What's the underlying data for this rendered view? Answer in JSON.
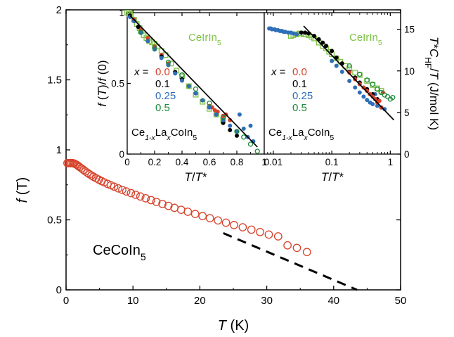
{
  "chart_data": [
    {
      "panel": "main",
      "type": "scatter",
      "xlabel": [
        "T",
        " (K)"
      ],
      "ylabel": [
        "f",
        " (T)"
      ],
      "xlim": [
        0,
        50
      ],
      "ylim": [
        0,
        2
      ],
      "xticks": [
        "0",
        "10",
        "20",
        "30",
        "40",
        "50"
      ],
      "yticks": [
        "0",
        "0.5",
        "1",
        "1.5",
        "2"
      ],
      "annotation": [
        "CeCoIn",
        "5"
      ],
      "series": [
        {
          "marker": "open-circle",
          "color": "#d7412a",
          "x": [
            0.2,
            0.4,
            0.6,
            0.8,
            1.0,
            1.2,
            1.4,
            1.6,
            1.8,
            2.0,
            2.3,
            2.6,
            2.9,
            3.2,
            3.5,
            3.8,
            4.1,
            4.5,
            4.9,
            5.3,
            5.7,
            6.2,
            6.7,
            7.2,
            7.8,
            8.4,
            9.0,
            9.7,
            10.4,
            11.1,
            11.9,
            12.7,
            13.5,
            14.4,
            15.3,
            16.2,
            17.2,
            18.2,
            19.3,
            20.4,
            21.5,
            22.7,
            23.9,
            25.1,
            26.4,
            27.7,
            29.0,
            30.3,
            31.7,
            33.1,
            34.5,
            36.0
          ],
          "y": [
            0.905,
            0.905,
            0.905,
            0.905,
            0.905,
            0.902,
            0.898,
            0.893,
            0.886,
            0.878,
            0.868,
            0.857,
            0.846,
            0.836,
            0.826,
            0.817,
            0.808,
            0.797,
            0.787,
            0.777,
            0.768,
            0.757,
            0.747,
            0.737,
            0.725,
            0.714,
            0.703,
            0.691,
            0.679,
            0.667,
            0.654,
            0.641,
            0.628,
            0.614,
            0.6,
            0.586,
            0.572,
            0.558,
            0.542,
            0.527,
            0.512,
            0.496,
            0.48,
            0.463,
            0.447,
            0.43,
            0.413,
            0.395,
            0.382,
            0.318,
            0.3,
            0.27
          ]
        }
      ],
      "fit_line": {
        "style": "dashed",
        "color": "#000000",
        "x": [
          23.5,
          43.5
        ],
        "y": [
          0.405,
          0.0
        ]
      }
    },
    {
      "panel": "inset-left",
      "type": "scatter",
      "xlabel": [
        "T",
        "/",
        "T",
        "*"
      ],
      "ylabel": [
        "f",
        " (",
        "T",
        ")/",
        "f",
        " (0)"
      ],
      "xlim": [
        0,
        1
      ],
      "ylim": [
        0,
        1
      ],
      "xticks": [
        "0",
        "0.2",
        "0.4",
        "0.6",
        "0.8",
        "1"
      ],
      "yticks": [
        "0",
        "0.5",
        "1"
      ],
      "annotation": [
        "CeIrIn",
        "5"
      ],
      "formula": [
        "Ce",
        "1-x",
        "La",
        "x",
        "CoIn",
        "5"
      ],
      "legend_title": [
        "x",
        " ="
      ],
      "legend": [
        {
          "label": "0.0",
          "color": "#d7412a"
        },
        {
          "label": "0.1",
          "color": "#000000"
        },
        {
          "label": "0.25",
          "color": "#2f6fb8"
        },
        {
          "label": "0.5",
          "color": "#1e8a3c"
        }
      ],
      "series": [
        {
          "label": "0.0",
          "color": "#d7412a",
          "marker": "filled-circle",
          "x": [
            0.05,
            0.1,
            0.15,
            0.2,
            0.25,
            0.3,
            0.35,
            0.4,
            0.45,
            0.5,
            0.55,
            0.6,
            0.62,
            0.64,
            0.66,
            0.7,
            0.72,
            0.75
          ],
          "y": [
            0.95,
            0.88,
            0.82,
            0.76,
            0.7,
            0.64,
            0.58,
            0.52,
            0.48,
            0.43,
            0.38,
            0.34,
            0.33,
            0.31,
            0.3,
            0.27,
            0.28,
            0.24
          ]
        },
        {
          "label": "0.1",
          "color": "#000000",
          "marker": "filled-circle",
          "x": [
            0.02,
            0.05,
            0.08,
            0.1,
            0.15,
            0.2,
            0.25,
            0.3,
            0.35,
            0.4,
            0.45,
            0.5,
            0.55,
            0.6,
            0.65,
            0.7,
            0.75,
            0.8
          ],
          "y": [
            0.98,
            0.94,
            0.9,
            0.86,
            0.8,
            0.74,
            0.69,
            0.63,
            0.58,
            0.53,
            0.48,
            0.43,
            0.38,
            0.33,
            0.28,
            0.22,
            0.17,
            0.13
          ]
        },
        {
          "label": "0.25",
          "color": "#2f6fb8",
          "marker": "filled-circle",
          "x": [
            0.02,
            0.05,
            0.1,
            0.15,
            0.2,
            0.25,
            0.3,
            0.35,
            0.4,
            0.45,
            0.5,
            0.55,
            0.6,
            0.65,
            0.7,
            0.75,
            0.8,
            0.82,
            0.85,
            0.88,
            0.9,
            0.92
          ],
          "y": [
            0.97,
            0.94,
            0.86,
            0.8,
            0.74,
            0.68,
            0.63,
            0.57,
            0.52,
            0.48,
            0.43,
            0.38,
            0.33,
            0.28,
            0.24,
            0.2,
            0.16,
            0.28,
            0.18,
            0.12,
            0.2,
            0.09
          ]
        },
        {
          "label": "0.5",
          "color": "#1e8a3c",
          "marker": "open-circle",
          "x": [
            0.1,
            0.2,
            0.3,
            0.4,
            0.5,
            0.6,
            0.7,
            0.8,
            0.85,
            0.9,
            0.95
          ],
          "y": [
            0.86,
            0.75,
            0.65,
            0.56,
            0.46,
            0.36,
            0.26,
            0.16,
            0.12,
            0.07,
            0.02
          ]
        },
        {
          "label": "CeIrIn5",
          "color": "#7cc243",
          "marker": "open-square",
          "x": [
            0.0,
            0.01,
            0.02,
            0.03,
            0.05,
            0.07,
            0.09,
            0.1,
            0.12,
            0.14,
            0.16,
            0.18,
            0.2,
            0.22,
            0.25,
            0.28,
            0.32,
            0.36,
            0.4,
            0.45,
            0.5,
            0.55,
            0.6,
            0.65,
            0.7
          ],
          "y": [
            1.0,
            1.0,
            0.99,
            0.98,
            0.95,
            0.92,
            0.89,
            0.87,
            0.84,
            0.82,
            0.8,
            0.79,
            0.78,
            0.76,
            0.73,
            0.7,
            0.64,
            0.59,
            0.55,
            0.48,
            0.42,
            0.37,
            0.32,
            0.28,
            0.24
          ]
        }
      ],
      "fit_line": {
        "style": "solid",
        "color": "#000000",
        "x": [
          0.02,
          0.95
        ],
        "y": [
          0.98,
          0.05
        ]
      }
    },
    {
      "panel": "inset-right",
      "type": "scatter",
      "xscale": "log",
      "xlabel": [
        "T",
        "/",
        "T",
        "*"
      ],
      "ylabel": [
        "T",
        "*",
        "C",
        "HF",
        "/",
        "T",
        " (J/mol K)"
      ],
      "xlim": [
        0.007,
        1.5
      ],
      "ylim": [
        0,
        17
      ],
      "xticks": [
        "0.01",
        "0.1",
        "1"
      ],
      "yticks": [
        "0",
        "5",
        "10",
        "15"
      ],
      "annotation": [
        "CeIrIn",
        "5"
      ],
      "formula": [
        "Ce",
        "1-x",
        "La",
        "x",
        "CoIn",
        "5"
      ],
      "legend_title": [
        "x",
        " ="
      ],
      "legend": [
        {
          "label": "0.0",
          "color": "#d7412a"
        },
        {
          "label": "0.1",
          "color": "#000000"
        },
        {
          "label": "0.25",
          "color": "#2f6fb8"
        },
        {
          "label": "0.5",
          "color": "#1e8a3c"
        }
      ],
      "series": [
        {
          "label": "0.25",
          "color": "#2f6fb8",
          "marker": "filled-circle",
          "x": [
            0.0085,
            0.009,
            0.0095,
            0.0105,
            0.011,
            0.012,
            0.013,
            0.014,
            0.015,
            0.016,
            0.018,
            0.02,
            0.022,
            0.025,
            0.1,
            0.12,
            0.15,
            0.2,
            0.25,
            0.3,
            0.35,
            0.4,
            0.45,
            0.5,
            0.55,
            0.6,
            0.7,
            0.8
          ],
          "y": [
            15.1,
            15.1,
            15.0,
            15.0,
            14.9,
            14.9,
            14.8,
            14.8,
            14.7,
            14.7,
            14.6,
            14.6,
            14.5,
            14.4,
            11.2,
            10.6,
            9.9,
            8.8,
            8.0,
            7.4,
            6.9,
            6.5,
            6.2,
            6.0,
            7.2,
            5.8,
            5.6,
            5.4
          ]
        },
        {
          "label": "0.1",
          "color": "#000000",
          "marker": "filled-circle",
          "x": [
            0.03,
            0.035,
            0.04,
            0.05,
            0.06,
            0.07,
            0.08,
            0.1,
            0.12,
            0.15,
            0.2,
            0.25,
            0.3,
            0.4,
            0.5,
            0.6
          ],
          "y": [
            14.6,
            14.6,
            14.5,
            14.2,
            13.8,
            13.4,
            13.0,
            12.4,
            11.6,
            10.9,
            9.9,
            9.2,
            8.6,
            7.8,
            7.2,
            6.6
          ]
        },
        {
          "label": "0.0",
          "color": "#d7412a",
          "marker": "filled-circle",
          "x": [
            0.2,
            0.25,
            0.3,
            0.35,
            0.4,
            0.45,
            0.5,
            0.55,
            0.6,
            0.65,
            0.7,
            0.75
          ],
          "y": [
            9.8,
            9.0,
            8.4,
            8.0,
            7.6,
            7.2,
            6.9,
            6.6,
            6.2,
            6.4,
            5.6,
            7.4
          ]
        },
        {
          "label": "0.5",
          "color": "#1e8a3c",
          "marker": "open-circle",
          "x": [
            0.2,
            0.3,
            0.4,
            0.5,
            0.6,
            0.7,
            0.8,
            0.9,
            1.0,
            1.1
          ],
          "y": [
            10.6,
            9.6,
            8.9,
            8.4,
            7.8,
            7.4,
            7.1,
            6.9,
            6.6,
            6.8
          ]
        },
        {
          "label": "CeIrIn5",
          "color": "#7cc243",
          "marker": "open-square",
          "x": [
            0.02,
            0.022,
            0.025,
            0.028,
            0.03,
            0.033,
            0.036,
            0.04,
            0.045,
            0.05,
            0.06,
            0.07,
            0.08,
            0.09,
            0.1,
            0.12,
            0.14,
            0.17,
            0.2,
            0.25,
            0.3,
            0.4,
            0.5,
            0.6,
            0.7
          ],
          "y": [
            14.2,
            14.3,
            14.4,
            14.5,
            14.5,
            14.4,
            14.4,
            14.3,
            14.1,
            13.9,
            13.4,
            13.0,
            12.7,
            12.3,
            12.0,
            11.5,
            11.1,
            10.6,
            10.3,
            9.8,
            9.5,
            8.8,
            8.3,
            7.9,
            7.6
          ]
        }
      ],
      "fit_line": {
        "style": "solid",
        "color": "#000000",
        "x": [
          0.033,
          1.15
        ],
        "y": [
          15.4,
          4.1
        ]
      }
    }
  ]
}
